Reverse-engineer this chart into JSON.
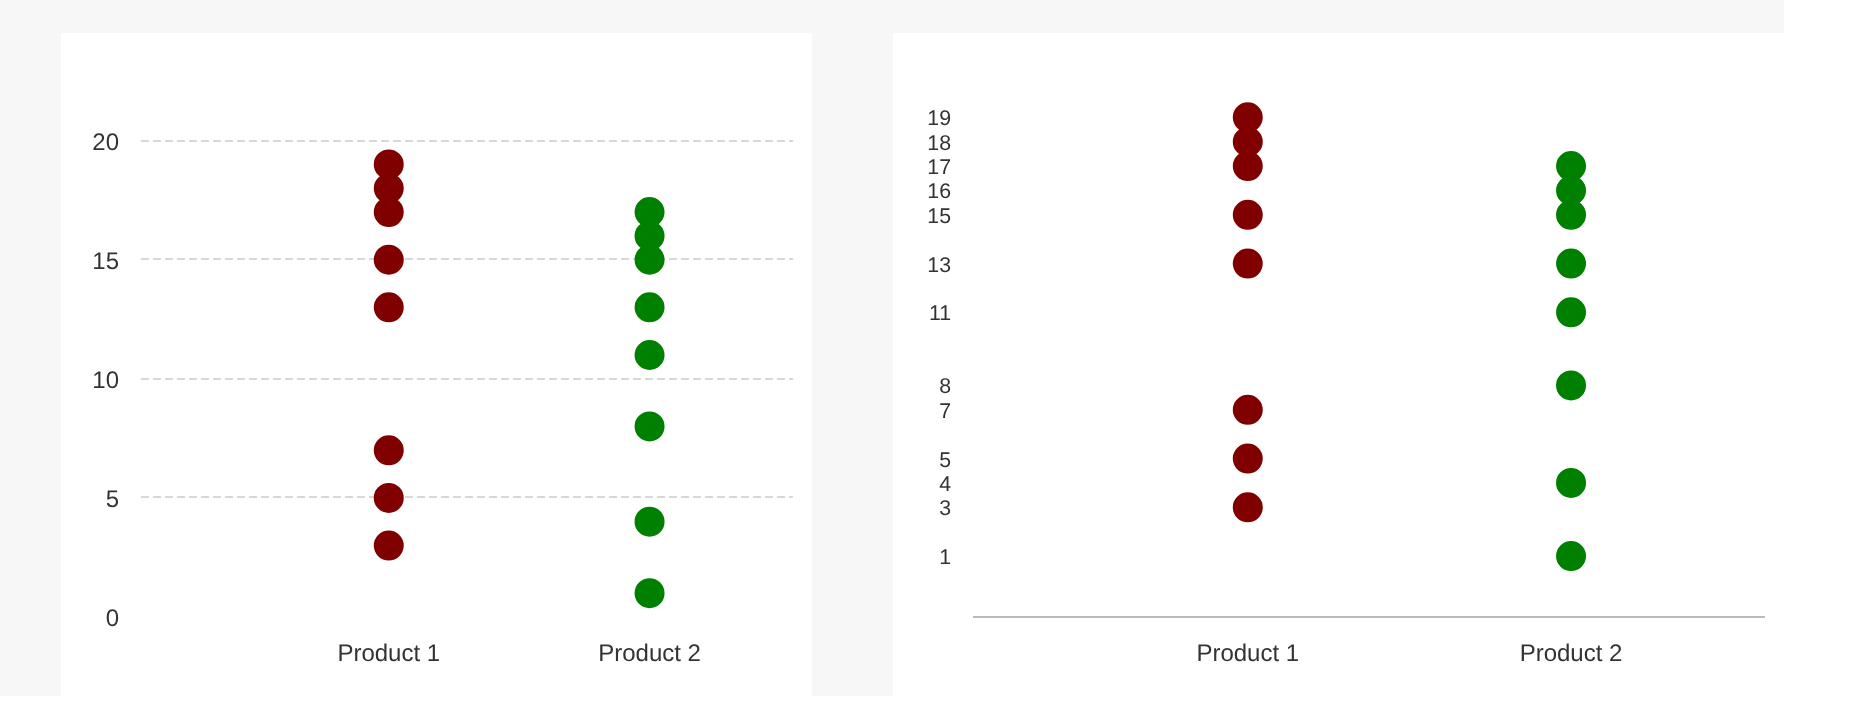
{
  "chart_data": [
    {
      "type": "scatter",
      "categories": [
        "Product 1",
        "Product 2"
      ],
      "ylim": [
        0,
        22
      ],
      "yticks": [
        0,
        5,
        10,
        15,
        20
      ],
      "grid": "y",
      "marker": "circle",
      "series": [
        {
          "color": "#800000",
          "x": [
            "Product 1",
            "Product 1",
            "Product 1",
            "Product 1",
            "Product 1",
            "Product 1",
            "Product 1",
            "Product 1"
          ],
          "values": [
            19,
            18,
            17,
            15,
            13,
            7,
            5,
            3
          ]
        },
        {
          "color": "#008000",
          "x": [
            "Product 2",
            "Product 2",
            "Product 2",
            "Product 2",
            "Product 2",
            "Product 2",
            "Product 2",
            "Product 2"
          ],
          "values": [
            17,
            16,
            15,
            13,
            11,
            8,
            4,
            1
          ]
        }
      ]
    },
    {
      "type": "scatter",
      "categories": [
        "Product 1",
        "Product 2"
      ],
      "ylim": [
        -1.5,
        20
      ],
      "yticks": [
        1,
        3,
        4,
        5,
        7,
        8,
        11,
        13,
        15,
        16,
        17,
        18,
        19
      ],
      "marker": "circle",
      "series": [
        {
          "color": "#800000",
          "x": [
            "Product 1",
            "Product 1",
            "Product 1",
            "Product 1",
            "Product 1",
            "Product 1",
            "Product 1",
            "Product 1"
          ],
          "values": [
            19,
            18,
            17,
            15,
            13,
            7,
            5,
            3
          ]
        },
        {
          "color": "#008000",
          "x": [
            "Product 2",
            "Product 2",
            "Product 2",
            "Product 2",
            "Product 2",
            "Product 2",
            "Product 2",
            "Product 2"
          ],
          "values": [
            17,
            16,
            15,
            13,
            11,
            8,
            4,
            1
          ]
        }
      ]
    }
  ]
}
